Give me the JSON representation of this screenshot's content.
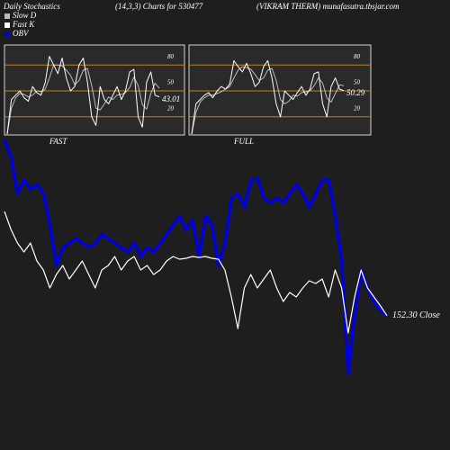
{
  "header": {
    "left": "Daily Stochastics",
    "middle": "(14,3,3) Charts for 530477",
    "right": "(VIKRAM THERM) munafasutra.tbsjar.com"
  },
  "chart_data": [
    {
      "type": "line",
      "title": "FAST",
      "ylim": [
        0,
        100
      ],
      "yticks": [
        80,
        50,
        20
      ],
      "grid": true,
      "series": [
        {
          "name": "Slow D",
          "color": "#bbbbbb",
          "values": [
            0,
            30,
            42,
            47,
            46,
            43,
            45,
            50,
            49,
            52,
            65,
            80,
            80,
            79,
            74,
            68,
            57,
            62,
            74,
            76,
            56,
            30,
            28,
            35,
            43,
            40,
            45,
            46,
            48,
            54,
            66,
            56,
            34,
            29,
            47,
            59,
            53
          ]
        },
        {
          "name": "Fast K",
          "color": "#ffffff",
          "values": [
            0,
            40,
            45,
            50,
            42,
            38,
            55,
            48,
            45,
            60,
            90,
            80,
            70,
            88,
            65,
            50,
            55,
            80,
            88,
            60,
            20,
            10,
            55,
            40,
            35,
            45,
            55,
            40,
            50,
            72,
            75,
            20,
            8,
            60,
            72,
            45,
            43.01
          ]
        }
      ]
    },
    {
      "type": "line",
      "title": "FULL",
      "ylim": [
        0,
        100
      ],
      "yticks": [
        80,
        50,
        20
      ],
      "grid": true,
      "series": [
        {
          "name": "Slow D",
          "color": "#bbbbbb",
          "values": [
            0,
            25,
            37,
            42,
            45,
            45,
            47,
            49,
            52,
            55,
            65,
            74,
            78,
            77,
            75,
            69,
            62,
            65,
            74,
            76,
            62,
            40,
            35,
            38,
            45,
            44,
            48,
            49,
            50,
            56,
            65,
            59,
            42,
            37,
            47,
            57,
            56
          ]
        },
        {
          "name": "Fast K",
          "color": "#ffffff",
          "values": [
            0,
            35,
            40,
            45,
            48,
            42,
            50,
            55,
            52,
            58,
            85,
            78,
            72,
            82,
            70,
            55,
            60,
            78,
            85,
            65,
            35,
            20,
            50,
            45,
            40,
            48,
            55,
            45,
            52,
            70,
            72,
            35,
            20,
            55,
            65,
            52,
            50.29
          ]
        }
      ]
    },
    {
      "type": "line",
      "ylim": [
        130,
        200
      ],
      "y2lim": [
        0,
        290
      ],
      "series": [
        {
          "name": "OBV",
          "color": "#0000dd",
          "axis": "y2",
          "values": [
            285,
            265,
            225,
            240,
            230,
            235,
            225,
            190,
            145,
            165,
            170,
            175,
            170,
            165,
            170,
            180,
            175,
            170,
            165,
            160,
            170,
            155,
            165,
            160,
            170,
            180,
            190,
            200,
            185,
            195,
            155,
            200,
            190,
            145,
            170,
            220,
            225,
            210,
            240,
            242,
            220,
            215,
            220,
            215,
            225,
            235,
            225,
            210,
            225,
            240,
            240,
            200,
            150,
            25,
            90,
            140,
            120,
            105,
            95,
            90
          ]
        },
        {
          "name": "Close",
          "color": "#ffffff",
          "values": [
            181.25,
            176.25,
            172.5,
            170,
            172.5,
            167.5,
            165,
            160,
            163.75,
            166.25,
            162.5,
            165,
            167.5,
            163.75,
            160,
            165,
            166.25,
            168.75,
            165,
            167.5,
            168.75,
            165,
            166.25,
            163.75,
            165,
            167.5,
            168.75,
            168,
            168.25,
            168.75,
            168.5,
            168.75,
            168.25,
            168,
            165,
            157.5,
            148.75,
            160,
            163.75,
            160,
            162.5,
            165,
            160,
            156.25,
            158.75,
            157.5,
            160,
            162,
            161.25,
            162.5,
            157.5,
            165,
            160,
            147.5,
            157.5,
            165,
            160,
            157.5,
            155,
            152.3
          ],
          "value_labels": [
            null,
            null,
            null,
            null,
            null,
            null,
            null,
            null,
            null,
            null,
            null,
            null,
            null,
            null,
            null,
            null,
            null,
            null,
            null,
            null,
            null,
            null,
            null,
            null,
            null,
            null,
            null,
            null,
            null,
            null,
            null,
            null,
            null,
            null,
            null,
            null,
            null,
            null,
            null,
            null,
            null,
            null,
            null,
            null,
            null,
            null,
            null,
            null,
            null,
            null,
            null,
            null,
            null,
            null,
            null,
            null,
            null,
            null,
            null,
            "152.30"
          ]
        }
      ]
    }
  ]
}
